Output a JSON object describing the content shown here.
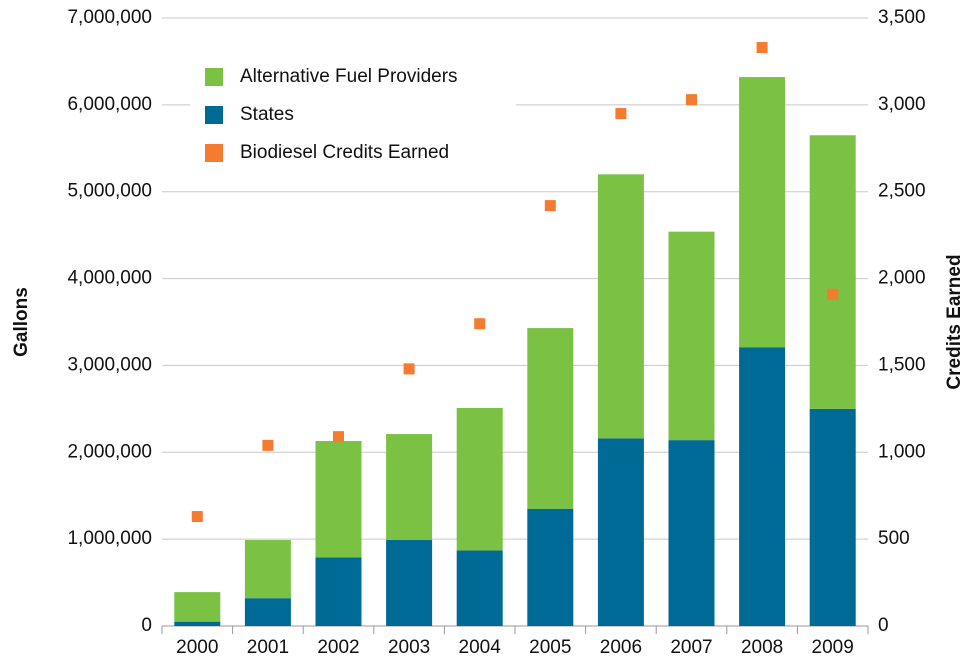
{
  "chart_data": {
    "type": "bar",
    "stacked": true,
    "ylabel": "Gallons",
    "y2label": "Credits Earned",
    "categories": [
      "2000",
      "2001",
      "2002",
      "2003",
      "2004",
      "2005",
      "2006",
      "2007",
      "2008",
      "2009"
    ],
    "series": [
      {
        "name": "Alternative Fuel Providers",
        "color": "#7bc143",
        "type": "bar",
        "values": [
          340000,
          670000,
          1340000,
          1220000,
          1640000,
          2080000,
          3040000,
          2400000,
          3110000,
          3150000
        ]
      },
      {
        "name": "States",
        "color": "#006a96",
        "type": "bar",
        "values": [
          50000,
          320000,
          790000,
          990000,
          870000,
          1350000,
          2160000,
          2140000,
          3210000,
          2500000
        ]
      },
      {
        "name": "Biodiesel Credits Earned",
        "color": "#f47b30",
        "type": "scatter",
        "axis": "y2",
        "values": [
          630,
          1040,
          1090,
          1480,
          1740,
          2420,
          2950,
          3030,
          3330,
          1910
        ]
      }
    ],
    "ylim": [
      0,
      7000000
    ],
    "yticks": [
      0,
      {
        "value": 1000000,
        "label": "1,000,000"
      },
      {
        "value": 2000000,
        "label": "2,000,000"
      },
      {
        "value": 3000000,
        "label": "3,000,000"
      },
      {
        "value": 4000000,
        "label": "4,000,000"
      },
      {
        "value": 5000000,
        "label": "5,000,000"
      },
      {
        "value": 6000000,
        "label": "6,000,000"
      },
      {
        "value": 7000000,
        "label": "7,000,000"
      }
    ],
    "y2lim": [
      0,
      3500
    ],
    "y2ticks": [
      0,
      500,
      {
        "value": 1000,
        "label": "1,000"
      },
      {
        "value": 1500,
        "label": "1,500"
      },
      {
        "value": 2000,
        "label": "2,000"
      },
      {
        "value": 2500,
        "label": "2,500"
      },
      {
        "value": 3000,
        "label": "3,000"
      },
      {
        "value": 3500,
        "label": "3,500"
      }
    ],
    "grid": true,
    "legend": "upper left"
  }
}
